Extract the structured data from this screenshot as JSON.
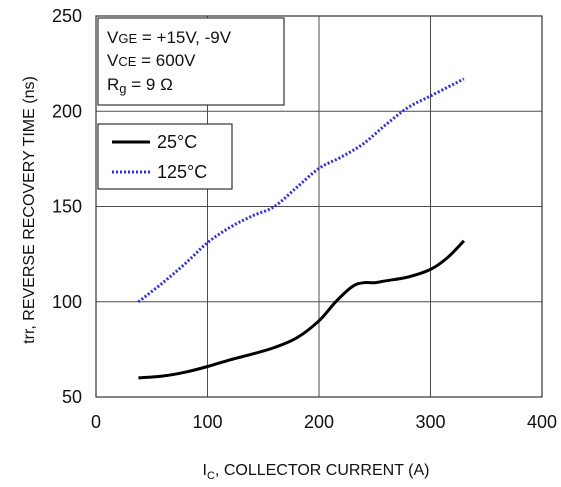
{
  "chart_data": {
    "type": "line",
    "xlabel_main": "I",
    "xlabel_sub": "C",
    "xlabel_rest": ", COLLECTOR CURRENT (A)",
    "ylabel": "trr, REVERSE RECOVERY TIME (ns)",
    "xlim": [
      0,
      400
    ],
    "ylim": [
      50,
      250
    ],
    "x_ticks": [
      "0",
      "100",
      "200",
      "300",
      "400"
    ],
    "y_ticks": [
      "50",
      "100",
      "150",
      "200",
      "250"
    ],
    "grid": true,
    "annotation": {
      "vge_main": "V",
      "vge_sub": "GE",
      "vge_val": " = +15V, -9V",
      "vce_main": "V",
      "vce_sub": "CE",
      "vce_val": " = 600V",
      "rg_main": "R",
      "rg_sub": "g",
      "rg_val": " = 9 Ω"
    },
    "legend_position": "top-left",
    "series": [
      {
        "name": "25°C",
        "color": "#000000",
        "style": "solid",
        "x": [
          38,
          60,
          80,
          100,
          120,
          140,
          160,
          180,
          200,
          215,
          230,
          240,
          250,
          260,
          280,
          300,
          315,
          330
        ],
        "y": [
          60,
          61,
          63,
          66,
          69.5,
          72.5,
          76,
          81,
          90,
          100,
          108,
          110,
          110,
          111,
          113,
          117,
          123,
          132
        ]
      },
      {
        "name": "125°C",
        "color": "#2b2bff",
        "style": "dotted",
        "x": [
          38,
          60,
          80,
          100,
          120,
          140,
          160,
          180,
          200,
          220,
          240,
          260,
          280,
          300,
          320,
          330
        ],
        "y": [
          100,
          110,
          120,
          131,
          139,
          145,
          150,
          160,
          170,
          176,
          183,
          193,
          202,
          208,
          214,
          217
        ]
      }
    ]
  }
}
